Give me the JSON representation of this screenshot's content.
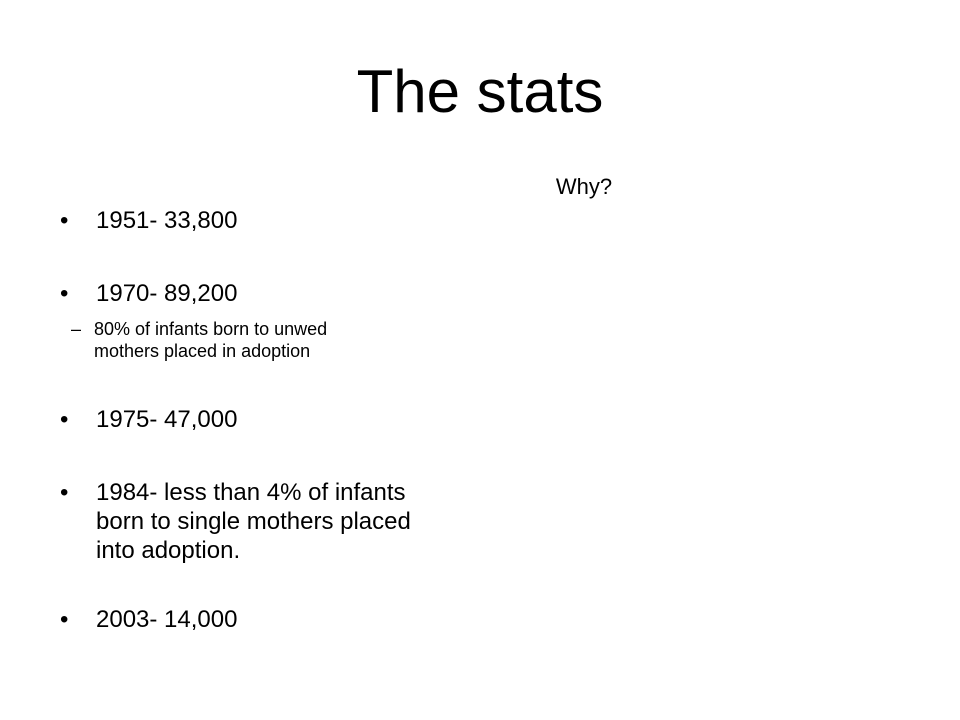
{
  "slide": {
    "title": "The stats",
    "right_column_text": "Why?",
    "bullets": [
      {
        "marker": "•",
        "text": "1951- 33,800"
      },
      {
        "marker": "•",
        "text": "1970- 89,200"
      },
      {
        "marker": "•",
        "text": "1975- 47,000"
      },
      {
        "marker": "•",
        "text": "1984- less than 4% of infants\nborn to single mothers placed\ninto adoption."
      },
      {
        "marker": "•",
        "text": "2003- 14,000"
      }
    ],
    "sub_bullets": [
      {
        "marker": "–",
        "text": "80% of infants born to unwed\nmothers placed in adoption"
      }
    ]
  }
}
